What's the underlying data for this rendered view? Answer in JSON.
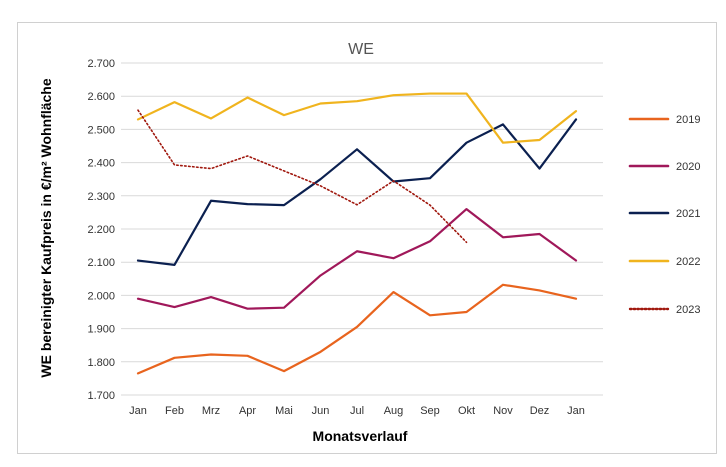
{
  "chart_data": {
    "type": "line",
    "title": "WE",
    "xlabel": "Monatsverlauf",
    "ylabel": "WE bereinigter Kaufpreis in €/m² Wohnfläche",
    "categories": [
      "Jan",
      "Feb",
      "Mrz",
      "Apr",
      "Mai",
      "Jun",
      "Jul",
      "Aug",
      "Sep",
      "Okt",
      "Nov",
      "Dez",
      "Jan"
    ],
    "ylim": [
      1700,
      2700
    ],
    "yticks": [
      1700,
      1800,
      1900,
      2000,
      2100,
      2200,
      2300,
      2400,
      2500,
      2600,
      2700
    ],
    "ytick_labels": [
      "1.700",
      "1.800",
      "1.900",
      "2.000",
      "2.100",
      "2.200",
      "2.300",
      "2.400",
      "2.500",
      "2.600",
      "2.700"
    ],
    "grid": "horizontal",
    "legend_position": "right",
    "series": [
      {
        "name": "2019",
        "color": "#E8641E",
        "style": "solid",
        "values": [
          1765,
          1812,
          1822,
          1818,
          1772,
          1830,
          1905,
          2010,
          1940,
          1950,
          2032,
          2015,
          1990
        ]
      },
      {
        "name": "2020",
        "color": "#A0185A",
        "style": "solid",
        "values": [
          1990,
          1965,
          1995,
          1960,
          1963,
          2060,
          2133,
          2112,
          2163,
          2260,
          2175,
          2185,
          2105
        ]
      },
      {
        "name": "2021",
        "color": "#0B2050",
        "style": "solid",
        "values": [
          2105,
          2092,
          2285,
          2275,
          2272,
          2350,
          2440,
          2343,
          2353,
          2460,
          2515,
          2382,
          2530
        ]
      },
      {
        "name": "2022",
        "color": "#F0B41E",
        "style": "solid",
        "values": [
          2530,
          2582,
          2533,
          2596,
          2543,
          2578,
          2585,
          2603,
          2608,
          2608,
          2460,
          2468,
          2555
        ]
      },
      {
        "name": "2023",
        "color": "#A0180E",
        "style": "dotted",
        "values": [
          2558,
          2393,
          2382,
          2420,
          2375,
          2330,
          2273,
          2345,
          2272,
          2160,
          null,
          null,
          null
        ]
      }
    ]
  }
}
